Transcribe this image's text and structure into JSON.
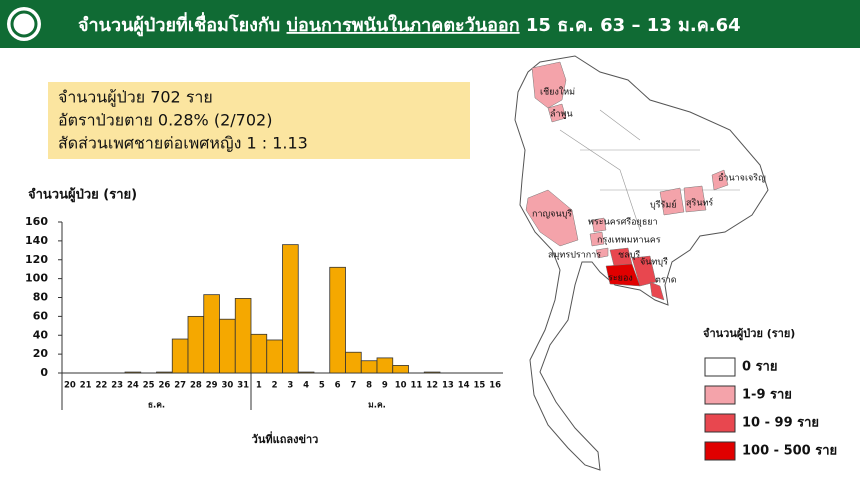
{
  "header": {
    "title_parts": [
      "จำนวนผู้ป่วยที่เชื่อมโยงกับ ",
      "บ่อนการพนันในภาคตะวันออก",
      " 15 ธ.ค. 63 – 13 ม.ค.64"
    ]
  },
  "info": {
    "lines": [
      "จำนวนผู้ป่วย 702 ราย",
      "อัตราป่วยตาย 0.28% (2/702)",
      "สัดส่วนเพศชายต่อเพศหญิง 1 : 1.13"
    ]
  },
  "chart_data": {
    "type": "bar",
    "y_label": "จำนวนผู้ป่วย (ราย)",
    "x_label": "วันที่แถลงข่าว",
    "months": [
      "ธ.ค.",
      "ม.ค."
    ],
    "categories": [
      "20",
      "21",
      "22",
      "23",
      "24",
      "25",
      "26",
      "27",
      "28",
      "29",
      "30",
      "31",
      "1",
      "2",
      "3",
      "4",
      "5",
      "6",
      "7",
      "8",
      "9",
      "10",
      "11",
      "12",
      "13",
      "14",
      "15",
      "16"
    ],
    "values": [
      0,
      0,
      0,
      0,
      1,
      0,
      1,
      36,
      60,
      83,
      57,
      79,
      41,
      35,
      136,
      1,
      0,
      112,
      22,
      13,
      16,
      8,
      0,
      1,
      0,
      0,
      0,
      0
    ],
    "color": "#f5a800",
    "ylim": [
      0,
      160
    ],
    "yticks": [
      0,
      20,
      40,
      60,
      80,
      100,
      120,
      140,
      160
    ]
  },
  "map": {
    "provinces": [
      {
        "label": "เชียงใหม่",
        "color": "#f4a3aa"
      },
      {
        "label": "ลำพูน",
        "color": "#f4a3aa"
      },
      {
        "label": "อำนาจเจริญ",
        "color": "#f4a3aa"
      },
      {
        "label": "กาญจนบุรี",
        "color": "#f4a3aa"
      },
      {
        "label": "บุรีรัมย์",
        "color": "#f4a3aa"
      },
      {
        "label": "สุรินทร์",
        "color": "#f4a3aa"
      },
      {
        "label": "พระนครศรีอยุธยา",
        "color": "#f4a3aa"
      },
      {
        "label": "กรุงเทพมหานคร",
        "color": "#f4a3aa"
      },
      {
        "label": "สมุทรปราการ",
        "color": "#f4a3aa"
      },
      {
        "label": "ชลบุรี",
        "color": "#e8474f"
      },
      {
        "label": "จันทบุรี",
        "color": "#e8474f"
      },
      {
        "label": "ระยอง",
        "color": "#e00000"
      },
      {
        "label": "ตราด",
        "color": "#e8474f"
      }
    ],
    "legend": {
      "title": "จำนวนผู้ป่วย (ราย)",
      "items": [
        {
          "label": "0 ราย",
          "color": "#ffffff"
        },
        {
          "label": "1-9 ราย",
          "color": "#f4a3aa"
        },
        {
          "label": "10 - 99 ราย",
          "color": "#e8474f"
        },
        {
          "label": "100 - 500 ราย",
          "color": "#e00000"
        }
      ]
    }
  }
}
